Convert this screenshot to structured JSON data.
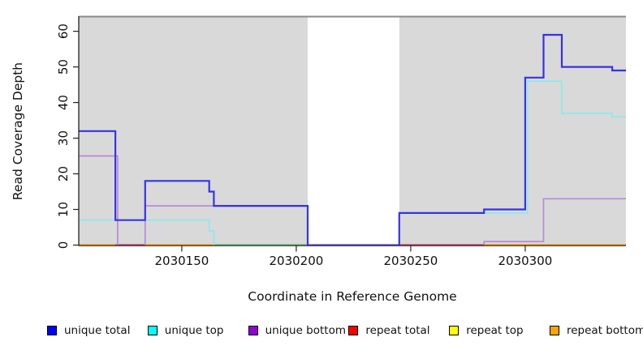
{
  "figure": {
    "background": "#ffffff",
    "plot_background": "#d9d9d9",
    "top_border_color": "#8a8a8a",
    "axis_color": "#222222"
  },
  "axes": {
    "y": {
      "title": "Read Coverage Depth",
      "tick_values": [
        0,
        10,
        20,
        30,
        40,
        50,
        60
      ]
    },
    "x": {
      "title": "Coordinate in Reference Genome",
      "tick_values": [
        2030150,
        2030200,
        2030250,
        2030300
      ]
    }
  },
  "legend": {
    "items": [
      {
        "label": "unique total",
        "color": "#0000ff"
      },
      {
        "label": "unique top",
        "color": "#00ffff"
      },
      {
        "label": "unique bottom",
        "color": "#9400d3"
      },
      {
        "label": "repeat total",
        "color": "#ff0000"
      },
      {
        "label": "repeat top",
        "color": "#ffff00"
      },
      {
        "label": "repeat bottom",
        "color": "#ffa500"
      }
    ]
  },
  "chart_data": {
    "type": "line",
    "subtype": "step",
    "title": "",
    "xlabel": "Coordinate in Reference Genome",
    "ylabel": "Read Coverage Depth",
    "xlim": [
      2030105,
      2030344
    ],
    "ylim": [
      0,
      64
    ],
    "x_ticks": [
      2030150,
      2030200,
      2030250,
      2030300
    ],
    "y_ticks": [
      0,
      10,
      20,
      30,
      40,
      50,
      60
    ],
    "grid": false,
    "legend_position": "bottom",
    "plot_background": "#d9d9d9",
    "no_data_region": {
      "x_start": 2030205,
      "x_end": 2030245,
      "fill": "#ffffff"
    },
    "series": [
      {
        "name": "unique total",
        "legend_color": "#0000ff",
        "plot_color": "#3732e6",
        "line_width": 2.2,
        "rendered": true,
        "pieces": [
          [
            [
              2030105,
              32
            ],
            [
              2030121,
              32
            ],
            [
              2030121,
              7
            ],
            [
              2030134,
              7
            ],
            [
              2030134,
              18
            ],
            [
              2030162,
              18
            ],
            [
              2030162,
              15
            ],
            [
              2030164,
              15
            ],
            [
              2030164,
              11
            ],
            [
              2030205,
              11
            ],
            [
              2030205,
              0
            ]
          ],
          [
            [
              2030245,
              0
            ],
            [
              2030245,
              9
            ],
            [
              2030282,
              9
            ],
            [
              2030282,
              10
            ],
            [
              2030300,
              10
            ],
            [
              2030300,
              47
            ],
            [
              2030308,
              47
            ],
            [
              2030308,
              59
            ],
            [
              2030316,
              59
            ],
            [
              2030316,
              50
            ],
            [
              2030338,
              50
            ],
            [
              2030338,
              49
            ],
            [
              2030344,
              49
            ]
          ]
        ]
      },
      {
        "name": "unique top",
        "legend_color": "#00ffff",
        "plot_color": "#8aeaea",
        "line_width": 1.7,
        "rendered": true,
        "pieces": [
          [
            [
              2030105,
              7
            ],
            [
              2030162,
              7
            ],
            [
              2030162,
              4
            ],
            [
              2030164,
              4
            ],
            [
              2030164,
              0
            ]
          ],
          [
            [
              2030245,
              0
            ],
            [
              2030245,
              9
            ],
            [
              2030301,
              9
            ],
            [
              2030301,
              46
            ],
            [
              2030316,
              46
            ],
            [
              2030316,
              37
            ],
            [
              2030338,
              37
            ],
            [
              2030338,
              36
            ],
            [
              2030344,
              36
            ]
          ]
        ]
      },
      {
        "name": "unique bottom",
        "legend_color": "#9400d3",
        "plot_color": "#b78ad8",
        "line_width": 1.7,
        "rendered": true,
        "pieces": [
          [
            [
              2030105,
              25
            ],
            [
              2030122,
              25
            ],
            [
              2030122,
              0
            ]
          ],
          [
            [
              2030134,
              0
            ],
            [
              2030134,
              11
            ],
            [
              2030205,
              11
            ],
            [
              2030205,
              0
            ]
          ],
          [
            [
              2030282,
              0
            ],
            [
              2030282,
              1
            ],
            [
              2030308,
              1
            ],
            [
              2030308,
              13
            ],
            [
              2030344,
              13
            ]
          ]
        ]
      },
      {
        "name": "repeat total",
        "legend_color": "#ff0000",
        "plot_color": "#ff0000",
        "line_width": 1.7,
        "rendered": false,
        "note": "zero across the whole plotted range; visible only within blended baseline segments",
        "pieces": [
          [
            [
              2030105,
              0
            ],
            [
              2030205,
              0
            ]
          ],
          [
            [
              2030245,
              0
            ],
            [
              2030344,
              0
            ]
          ]
        ]
      },
      {
        "name": "repeat top",
        "legend_color": "#ffff00",
        "plot_color": "#ffff00",
        "line_width": 1.7,
        "rendered": false,
        "note": "zero across the whole plotted range; visible only within blended baseline segments",
        "pieces": [
          [
            [
              2030105,
              0
            ],
            [
              2030205,
              0
            ]
          ],
          [
            [
              2030245,
              0
            ],
            [
              2030344,
              0
            ]
          ]
        ]
      },
      {
        "name": "repeat bottom",
        "legend_color": "#ffa500",
        "plot_color": "#ff9d0a",
        "line_width": 1.7,
        "rendered": false,
        "note": "zero across the whole plotted range; drawn via baseline segments",
        "pieces": [
          [
            [
              2030105,
              0
            ],
            [
              2030205,
              0
            ]
          ],
          [
            [
              2030245,
              0
            ],
            [
              2030344,
              0
            ]
          ]
        ]
      }
    ],
    "baseline_segments": [
      {
        "x_start": 2030105,
        "x_end": 2030121,
        "color": "#ff9d0a"
      },
      {
        "x_start": 2030121,
        "x_end": 2030134,
        "color": "#c84d74"
      },
      {
        "x_start": 2030134,
        "x_end": 2030164,
        "color": "#ff9d0a"
      },
      {
        "x_start": 2030164,
        "x_end": 2030205,
        "color": "#67c17c"
      },
      {
        "x_start": 2030205,
        "x_end": 2030245,
        "color": "#6a5ae8"
      },
      {
        "x_start": 2030245,
        "x_end": 2030282,
        "color": "#c84d74"
      },
      {
        "x_start": 2030282,
        "x_end": 2030344,
        "color": "#ff9d0a"
      }
    ]
  }
}
